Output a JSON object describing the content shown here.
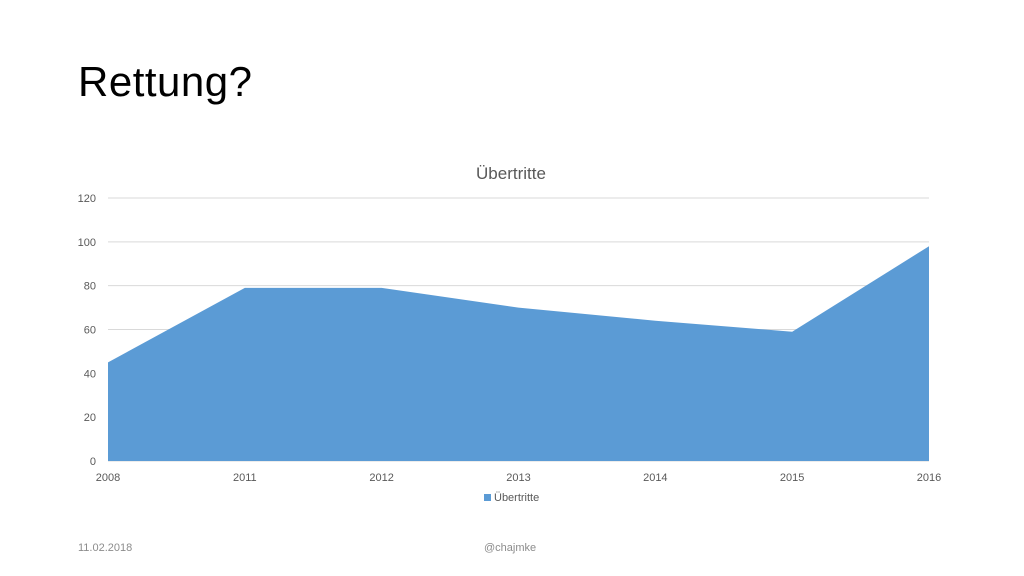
{
  "slide": {
    "title": "Rettung?",
    "footer_date": "11.02.2018",
    "footer_handle": "@chajmke"
  },
  "colors": {
    "series": "#5b9bd5",
    "gridline": "#d9d9d9",
    "text": "#595959"
  },
  "chart_data": {
    "type": "area",
    "title": "Übertritte",
    "categories": [
      "2008",
      "2011",
      "2012",
      "2013",
      "2014",
      "2015",
      "2016"
    ],
    "series": [
      {
        "name": "Übertritte",
        "values": [
          45,
          79,
          79,
          70,
          64,
          59,
          98
        ]
      }
    ],
    "ylim": [
      0,
      120
    ],
    "yticks": [
      0,
      20,
      40,
      60,
      80,
      100,
      120
    ],
    "ytick_labels": [
      "0",
      "20",
      "40",
      "60",
      "80",
      "100",
      "120"
    ],
    "grid": true,
    "legend": "bottom"
  }
}
